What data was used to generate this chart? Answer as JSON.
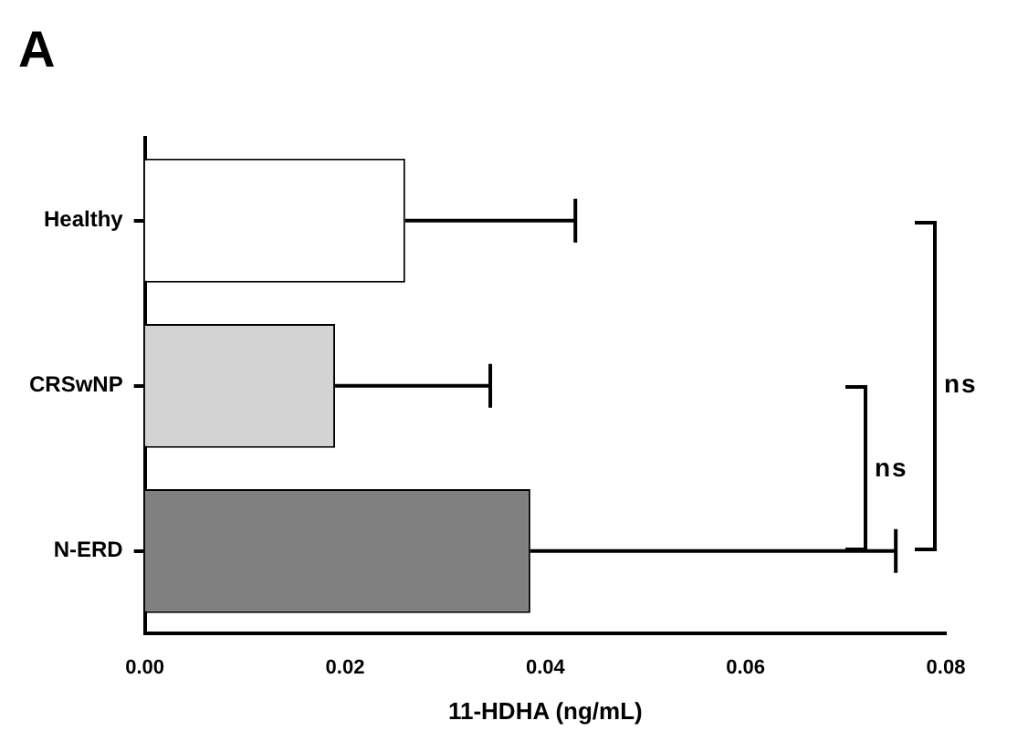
{
  "chart_data": {
    "type": "bar",
    "orientation": "horizontal",
    "title": "A",
    "xlabel": "11-HDHA (ng/mL)",
    "categories": [
      "Healthy",
      "CRSwNP",
      "N-ERD"
    ],
    "values": [
      0.026,
      0.019,
      0.0385
    ],
    "colors": [
      "#ffffff",
      "#d3d3d3",
      "#808080"
    ],
    "errors": [
      [
        0.026,
        0.043
      ],
      [
        0.019,
        0.0345
      ],
      [
        0.0385,
        0.075
      ]
    ],
    "xlim": [
      0,
      0.08
    ],
    "xticks": [
      {
        "value": 0,
        "label": "0.00"
      },
      {
        "value": 0.02,
        "label": "0.02"
      },
      {
        "value": 0.04,
        "label": "0.04"
      },
      {
        "value": 0.06,
        "label": "0.06"
      },
      {
        "value": 0.08,
        "label": "0.08"
      }
    ],
    "grid": false,
    "annotations": [
      "ns",
      "ns"
    ]
  }
}
